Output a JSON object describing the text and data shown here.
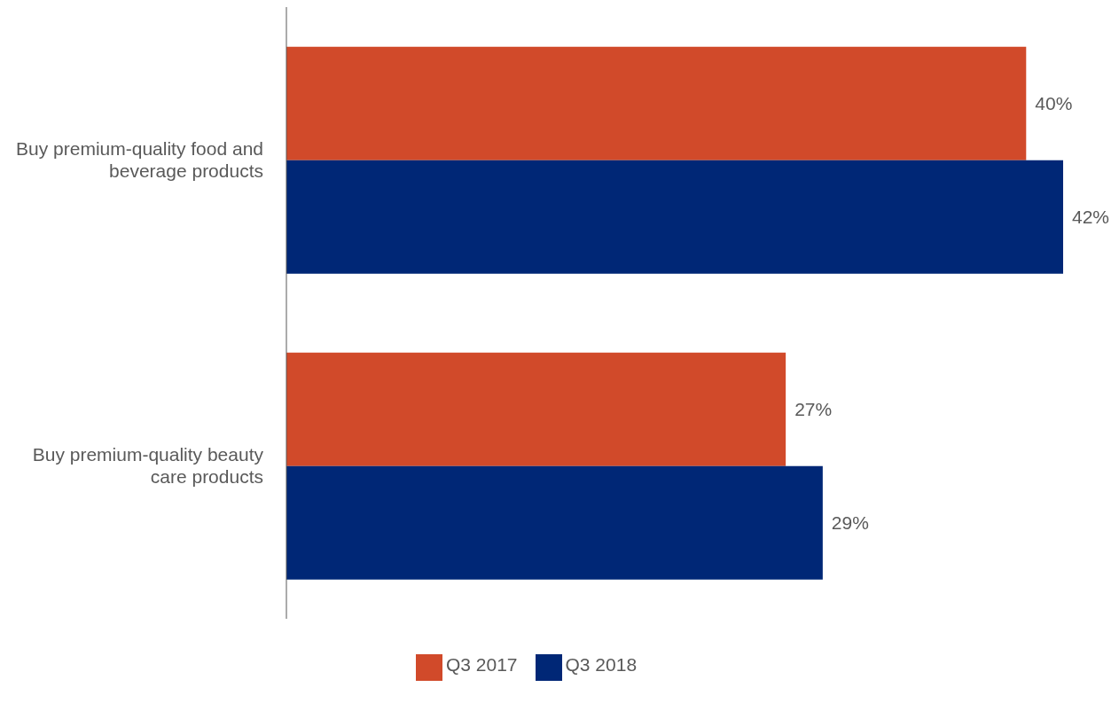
{
  "chart_data": {
    "type": "bar",
    "orientation": "horizontal",
    "categories": [
      "Buy premium-quality food and beverage products",
      "Buy premium-quality beauty care products"
    ],
    "series": [
      {
        "name": "Q3 2017",
        "color": "#d14a2a",
        "values": [
          40,
          27
        ],
        "value_labels": [
          "40%",
          "27%"
        ]
      },
      {
        "name": "Q3 2018",
        "color": "#002776",
        "values": [
          42,
          29
        ],
        "value_labels": [
          "42%",
          "29%"
        ]
      }
    ],
    "legend": "bottom",
    "grid": false
  }
}
